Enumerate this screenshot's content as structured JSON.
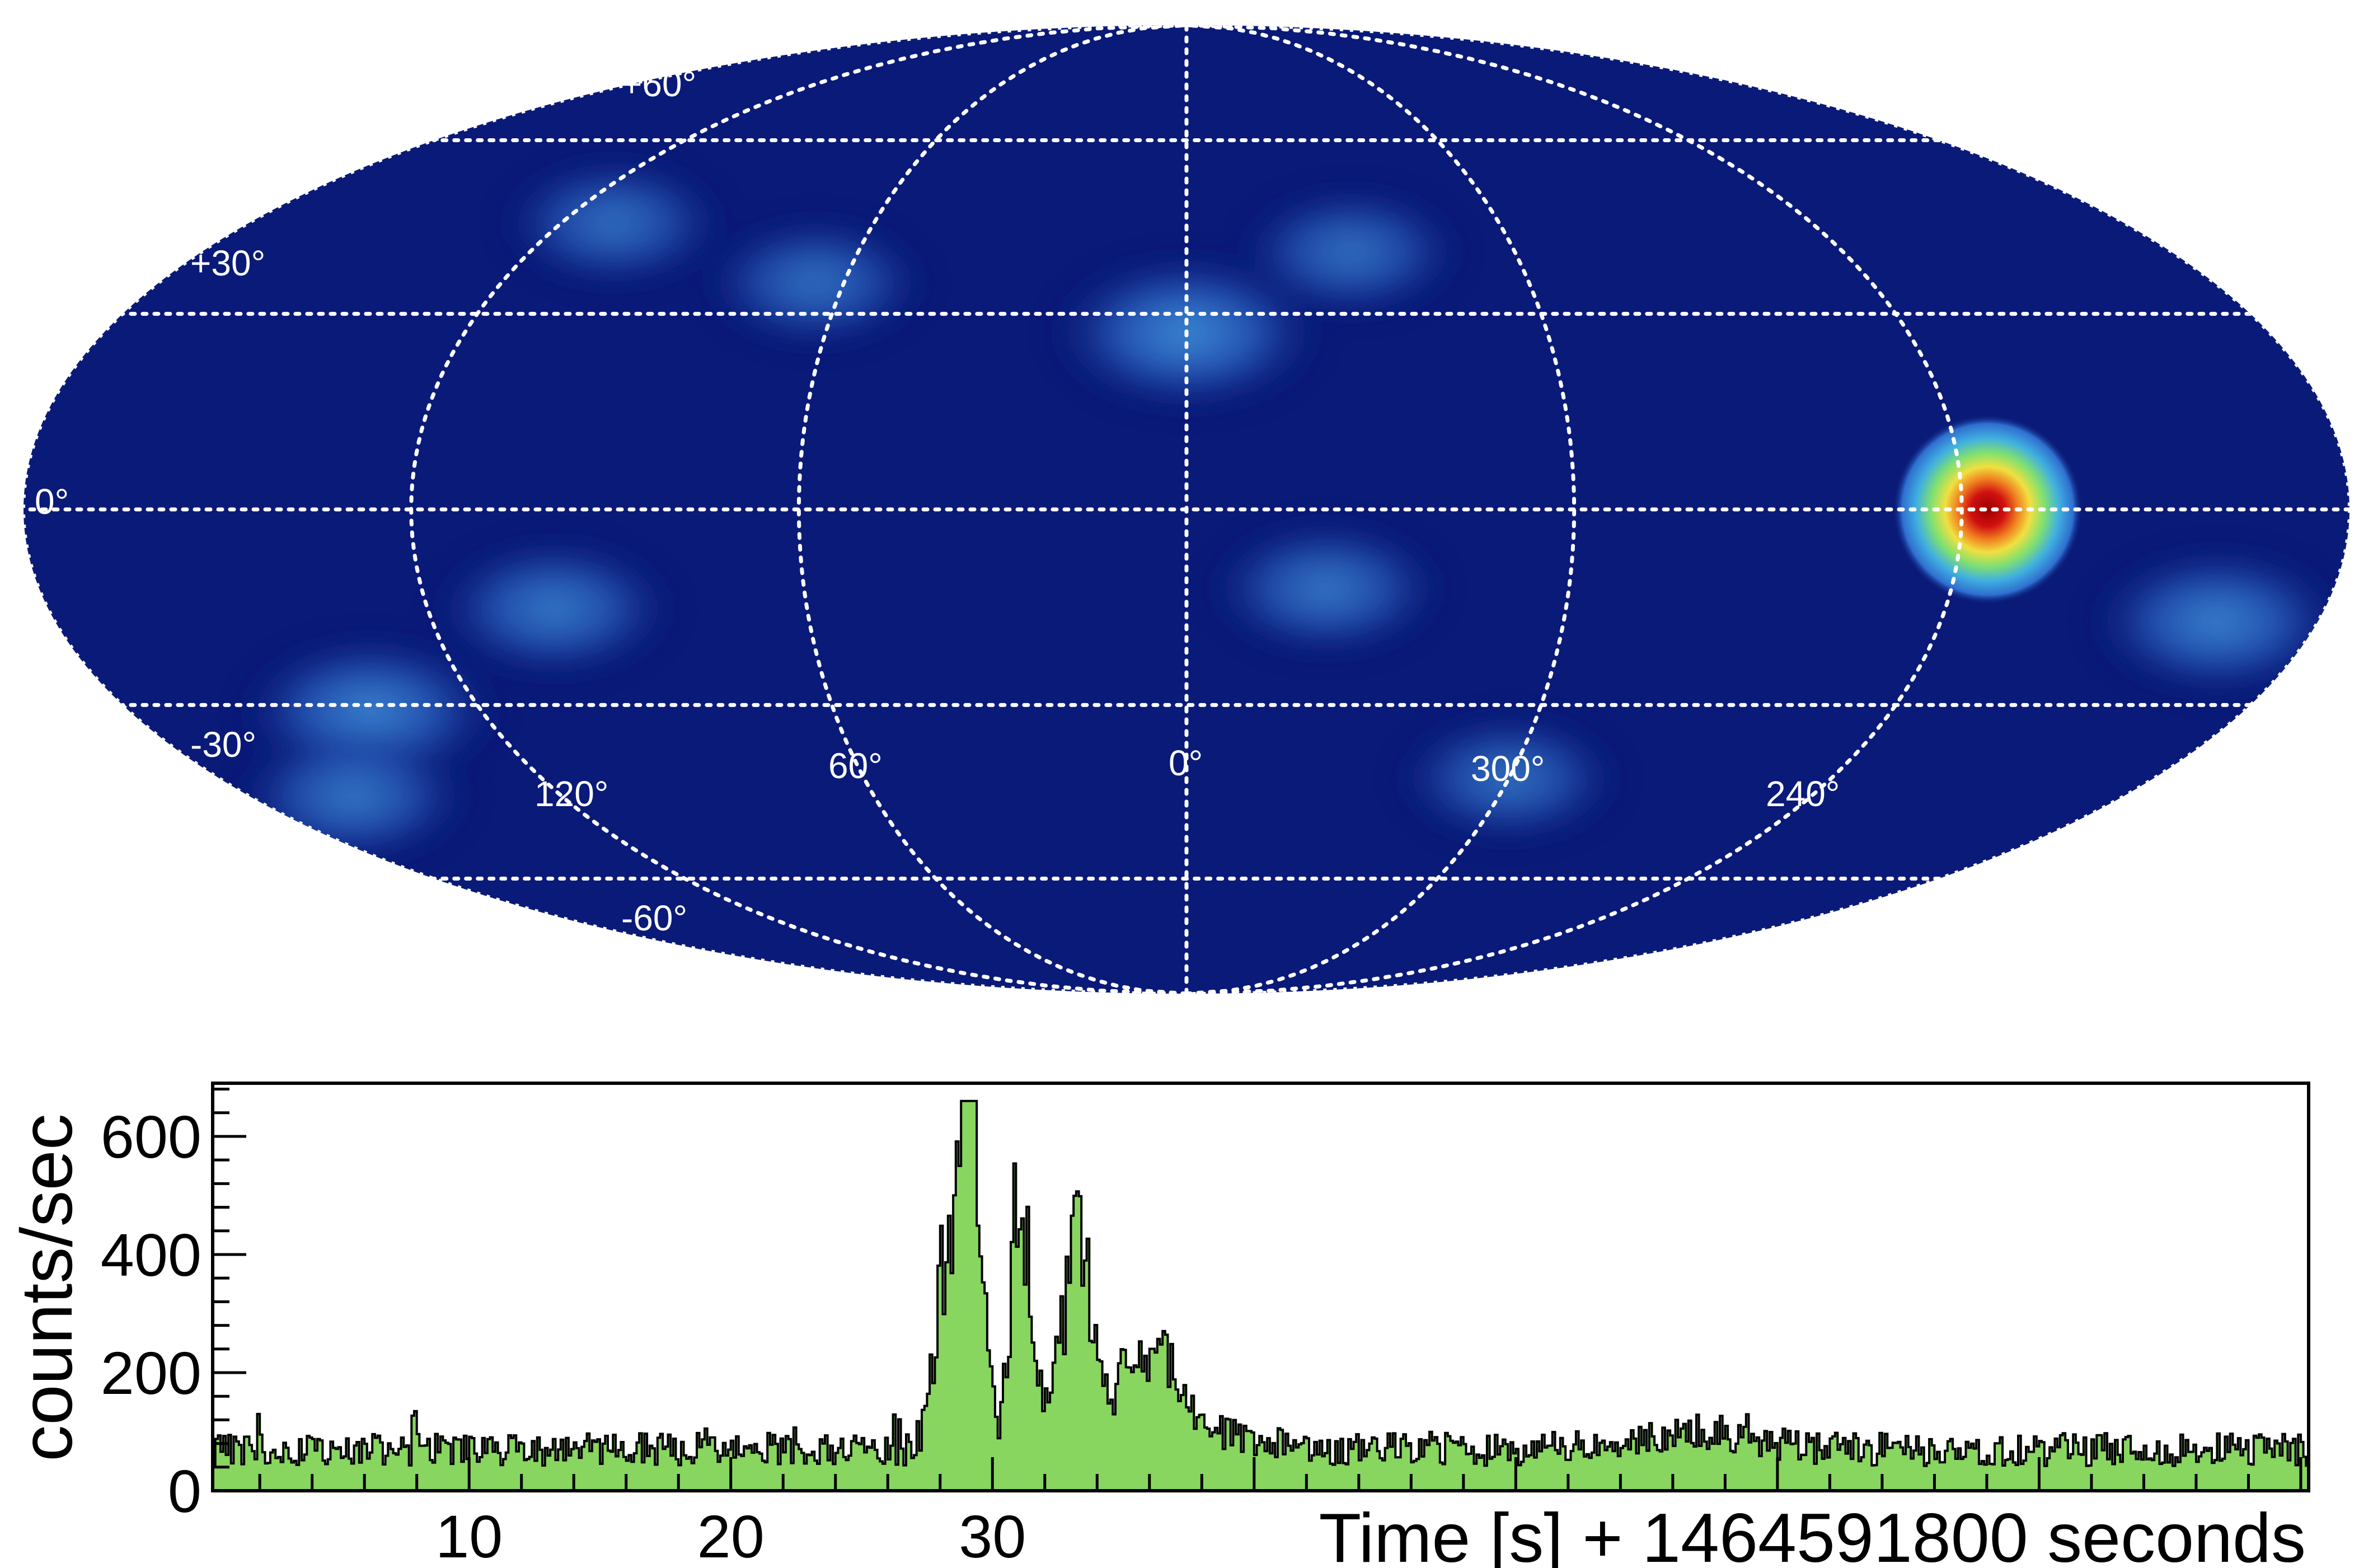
{
  "chart_data": [
    {
      "type": "heatmap",
      "projection": "mollweide",
      "colormap": [
        "#0a1a78",
        "#1a3aa0",
        "#2f6fd0",
        "#40b0e0",
        "#80e070",
        "#f0e040",
        "#f08020",
        "#d01010",
        "#a00000"
      ],
      "background_color": "#0a1a78",
      "grid": true,
      "grid_style": "dotted white",
      "lat_lines": [
        -60,
        -30,
        0,
        30,
        60
      ],
      "lon_lines": [
        0,
        60,
        120,
        240,
        300
      ],
      "lat_labels": [
        "+60°",
        "+30°",
        "0°",
        "-30°",
        "-60°"
      ],
      "lon_labels": [
        "120°",
        "60°",
        "0°",
        "300°",
        "240°"
      ],
      "hotspot": {
        "lon": 236,
        "lat": 0,
        "level": 1.0
      },
      "blobs": [
        {
          "lon": 0,
          "lat": 27,
          "level": 0.45
        },
        {
          "lon": 139,
          "lat": -31,
          "level": 0.4
        },
        {
          "lon": 160,
          "lat": -45,
          "level": 0.3
        },
        {
          "lon": 100,
          "lat": -15,
          "level": 0.32
        },
        {
          "lon": 338,
          "lat": -12,
          "level": 0.3
        },
        {
          "lon": 196,
          "lat": -17,
          "level": 0.38
        },
        {
          "lon": 300,
          "lat": -42,
          "level": 0.25
        },
        {
          "lon": 65,
          "lat": 35,
          "level": 0.25
        },
        {
          "lon": 110,
          "lat": 45,
          "level": 0.25
        },
        {
          "lon": 330,
          "lat": 40,
          "level": 0.25
        }
      ]
    },
    {
      "type": "area",
      "title": "",
      "xlabel": "Time [s] + 1464591800 seconds",
      "ylabel": "counts/sec",
      "xlim": [
        0.2,
        80.3
      ],
      "ylim": [
        0,
        690
      ],
      "xticks": [
        10,
        20,
        30
      ],
      "yticks": [
        0,
        200,
        400,
        600
      ],
      "bin_width": 0.1,
      "fill_color": "#88d660",
      "line_color": "#000000",
      "grid": false,
      "baseline": 70,
      "noise_amplitude": 28,
      "bursts": [
        {
          "t": 28.2,
          "amp": 310,
          "width": 0.45
        },
        {
          "t": 29.3,
          "amp": 480,
          "width": 0.35
        },
        {
          "t": 28.9,
          "amp": 380,
          "width": 0.25
        },
        {
          "t": 31.0,
          "amp": 470,
          "width": 0.35
        },
        {
          "t": 32.6,
          "amp": 180,
          "width": 0.5
        },
        {
          "t": 33.4,
          "amp": 300,
          "width": 0.45
        },
        {
          "t": 35.0,
          "amp": 110,
          "width": 0.7
        },
        {
          "t": 36.4,
          "amp": 140,
          "width": 0.6
        },
        {
          "t": 38.0,
          "amp": 40,
          "width": 1.6
        },
        {
          "t": 56.5,
          "amp": 25,
          "width": 2.5
        }
      ]
    }
  ]
}
